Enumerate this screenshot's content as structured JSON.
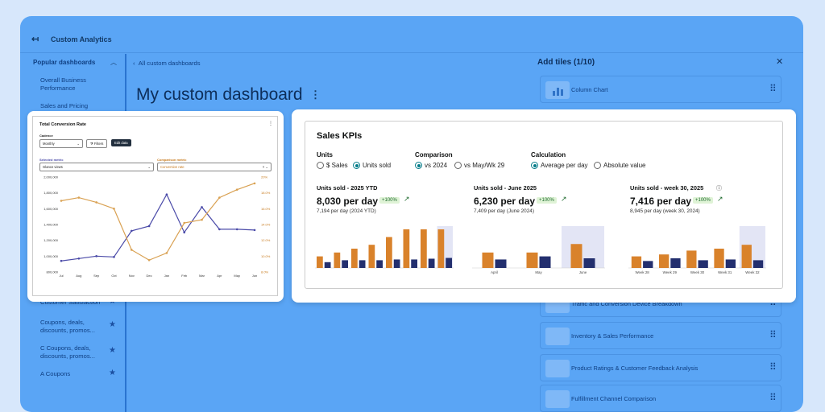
{
  "app": {
    "back_glyph": "↤",
    "title": "Custom Analytics"
  },
  "sidebar": {
    "section": "Popular dashboards",
    "items": [
      "Overall Business Performance",
      "Sales and Pricing"
    ],
    "starred": [
      "Customer Satisfaction",
      "Coupons, deals, discounts, promos...",
      "C Coupons, deals, discounts, promos...",
      "A Coupons"
    ]
  },
  "breadcrumb": "All custom dashboards",
  "dashboard_title": "My custom dashboard",
  "add_tiles": {
    "title": "Add tiles (1/10)",
    "tiles": [
      "Column Chart",
      "Traffic and Conversion Device Breakdown",
      "Inventory & Sales Performance",
      "Product Ratings & Customer Feedback Analysis",
      "Fulfillment Channel Comparison"
    ]
  },
  "conversion_card": {
    "title": "Total Conversion Rate",
    "cadence_label": "Cadence",
    "cadence_value": "Monthly",
    "filters_label": "Filters",
    "edit_label": "Edit data",
    "selected_metric_label": "Selected metric",
    "selected_metric_value": "Glance views",
    "comparison_metric_label": "Comparison metric",
    "comparison_metric_value": "Conversion rate",
    "colors": {
      "selected": "#4a4aa8",
      "comparison": "#d9a152"
    },
    "chart_data": {
      "type": "line",
      "x": [
        "Jul",
        "Aug",
        "Sep",
        "Oct",
        "Nov",
        "Dec",
        "Jan",
        "Feb",
        "Mar",
        "Apr",
        "May",
        "Jun"
      ],
      "y_left_ticks": [
        "2,000,000",
        "1,800,000",
        "1,600,000",
        "1,400,000",
        "1,200,000",
        "1,000,000",
        "800,000"
      ],
      "y_right_ticks": [
        "20%",
        "18.0%",
        "16.0%",
        "14.0%",
        "12.0%",
        "10.0%",
        "8.0%"
      ],
      "ylim_left": [
        800000,
        2000000
      ],
      "ylim_right": [
        8,
        20
      ],
      "series": [
        {
          "axis": "left",
          "values": [
            940000,
            970000,
            1000000,
            990000,
            1320000,
            1380000,
            1780000,
            1300000,
            1620000,
            1340000,
            1340000,
            1330000
          ]
        },
        {
          "axis": "right",
          "values": [
            17.0,
            17.4,
            16.8,
            16.0,
            10.8,
            9.5,
            10.4,
            14.2,
            14.6,
            17.4,
            18.4,
            19.2
          ]
        }
      ]
    }
  },
  "kpi_card": {
    "title": "Sales KPIs",
    "units": {
      "label": "Units",
      "options": [
        "$ Sales",
        "Units sold"
      ],
      "selected": 1
    },
    "comparison": {
      "label": "Comparison",
      "options": [
        "vs 2024",
        "vs May/Wk 29"
      ],
      "selected": 0
    },
    "calculation": {
      "label": "Calculation",
      "options": [
        "Average per day",
        "Absolute value"
      ],
      "selected": 0
    },
    "colors": {
      "current": "#d9822b",
      "prior": "#232f6e",
      "highlight": "#e3e5f5"
    },
    "kpis": [
      {
        "label": "Units sold - 2025 YTD",
        "value": "8,030 per day",
        "badge": "+100%",
        "sub": "7,194 per day (2024 YTD)"
      },
      {
        "label": "Units sold - June 2025",
        "value": "6,230 per day",
        "badge": "+100%",
        "sub": "7,409 per day (June 2024)"
      },
      {
        "label": "Units sold - week 30, 2025",
        "value": "7,416 per day",
        "badge": "+100%",
        "sub": "8,945 per day (week 30, 2024)"
      }
    ],
    "chart_data": [
      {
        "type": "bar",
        "categories": [
          "",
          "",
          "",
          "",
          "",
          "",
          "",
          ""
        ],
        "series": [
          {
            "values": [
              3,
              4,
              5,
              6,
              8,
              10,
              10,
              10
            ]
          },
          {
            "values": [
              1.5,
              2,
              2,
              2,
              2.2,
              2.2,
              2.4,
              2.6
            ]
          }
        ]
      },
      {
        "type": "bar",
        "categories": [
          "April",
          "May",
          "June"
        ],
        "series": [
          {
            "values": [
              4,
              4,
              6.2
            ]
          },
          {
            "values": [
              2.2,
              3,
              2.5
            ]
          }
        ]
      },
      {
        "type": "bar",
        "categories": [
          "Week 28",
          "Week 29",
          "Week 30",
          "Week 31",
          "Week 32"
        ],
        "series": [
          {
            "values": [
              3,
              3.5,
              4.5,
              5,
              6
            ]
          },
          {
            "values": [
              1.8,
              2.5,
              2,
              2.2,
              2
            ]
          }
        ]
      }
    ]
  }
}
